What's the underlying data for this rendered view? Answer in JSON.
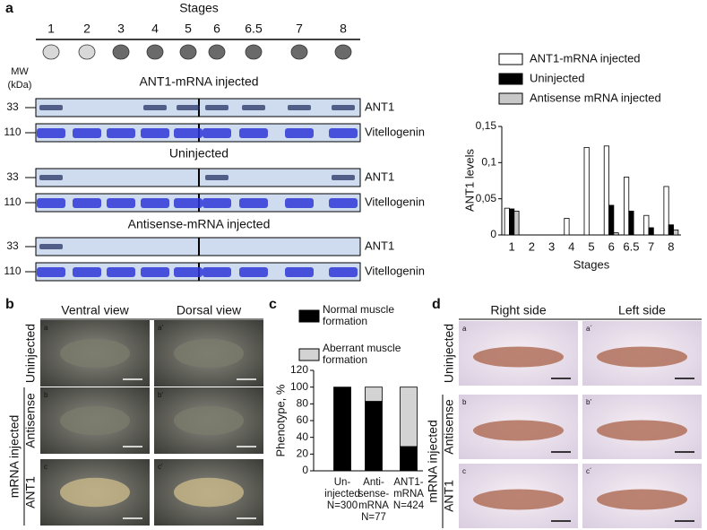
{
  "figure": {
    "panel_a": {
      "letter": "a",
      "stages_title": "Stages",
      "stages": [
        "1",
        "2",
        "3",
        "4",
        "5",
        "6",
        "6.5",
        "7",
        "8"
      ],
      "mw_label": [
        "MW",
        "(kDa)"
      ],
      "blots": [
        {
          "title": "ANT1-mRNA injected",
          "rows": [
            {
              "mw": 33,
              "label": "ANT1"
            },
            {
              "mw": 110,
              "label": "Vitellogenin"
            }
          ]
        },
        {
          "title": "Uninjected",
          "rows": [
            {
              "mw": 33,
              "label": "ANT1"
            },
            {
              "mw": 110,
              "label": "Vitellogenin"
            }
          ]
        },
        {
          "title": "Antisense-mRNA injected",
          "rows": [
            {
              "mw": 33,
              "label": "ANT1"
            },
            {
              "mw": 110,
              "label": "Vitellogenin"
            }
          ]
        }
      ]
    },
    "panel_b": {
      "letter": "b",
      "columns": [
        "Ventral view",
        "Dorsal view"
      ],
      "rows": [
        "Uninjected",
        "Antisense",
        "ANT1"
      ],
      "group": "mRNA injected",
      "tags": [
        [
          "a",
          "a'"
        ],
        [
          "b",
          "b'"
        ],
        [
          "c",
          "c'"
        ]
      ]
    },
    "panel_c": {
      "letter": "c"
    },
    "panel_d": {
      "letter": "d",
      "columns": [
        "Right side",
        "Left side"
      ],
      "rows": [
        "Uninjected",
        "Antisense",
        "ANT1"
      ],
      "group": "mRNA injected",
      "tags": [
        [
          "a",
          "a´"
        ],
        [
          "b",
          "b'"
        ],
        [
          "c",
          "c´"
        ]
      ]
    }
  },
  "chart_data": [
    {
      "type": "grouped_bar",
      "categories": [
        "1",
        "2",
        "3",
        "4",
        "5",
        "6",
        "6.5",
        "7",
        "8"
      ],
      "series": [
        {
          "name": "ANT1-mRNA injected",
          "color": "#ffffff",
          "values": [
            0.037,
            0,
            0,
            0.023,
            0.121,
            0.123,
            0.08,
            0.027,
            0.067
          ]
        },
        {
          "name": "Uninjected",
          "color": "#000000",
          "values": [
            0.036,
            0,
            0,
            0,
            0,
            0.041,
            0.033,
            0.01,
            0.014
          ]
        },
        {
          "name": "Antisense mRNA injected",
          "color": "#c8c8c8",
          "values": [
            0.033,
            0,
            0,
            0,
            0,
            0.003,
            0,
            0,
            0.007
          ]
        }
      ],
      "ylabel": "ANT1 levels",
      "xlabel": "Stages",
      "ylim": [
        0,
        0.15
      ],
      "yticks": [
        0,
        {
          "value": 0.05,
          "label": "0,05"
        },
        {
          "value": 0.1,
          "label": "0,1"
        },
        {
          "value": 0.15,
          "label": "0,15"
        }
      ]
    },
    {
      "type": "stacked_bar",
      "categories": [
        [
          "Un-",
          "injected",
          "N=300"
        ],
        [
          "Anti-",
          "sense-",
          "mRNA",
          "N=77"
        ],
        [
          "ANT1-",
          "mRNA",
          "N=424"
        ]
      ],
      "series": [
        {
          "name": "Normal muscle formation",
          "color": "#000000",
          "values": [
            100,
            83,
            29
          ]
        },
        {
          "name": "Aberrant muscle formation",
          "color": "#d3d3d3",
          "values": [
            0,
            17,
            71
          ]
        }
      ],
      "ylabel": "Phenotype, %",
      "ylim": [
        0,
        120
      ],
      "yticks": [
        0,
        20,
        40,
        60,
        80,
        100,
        120
      ]
    }
  ]
}
